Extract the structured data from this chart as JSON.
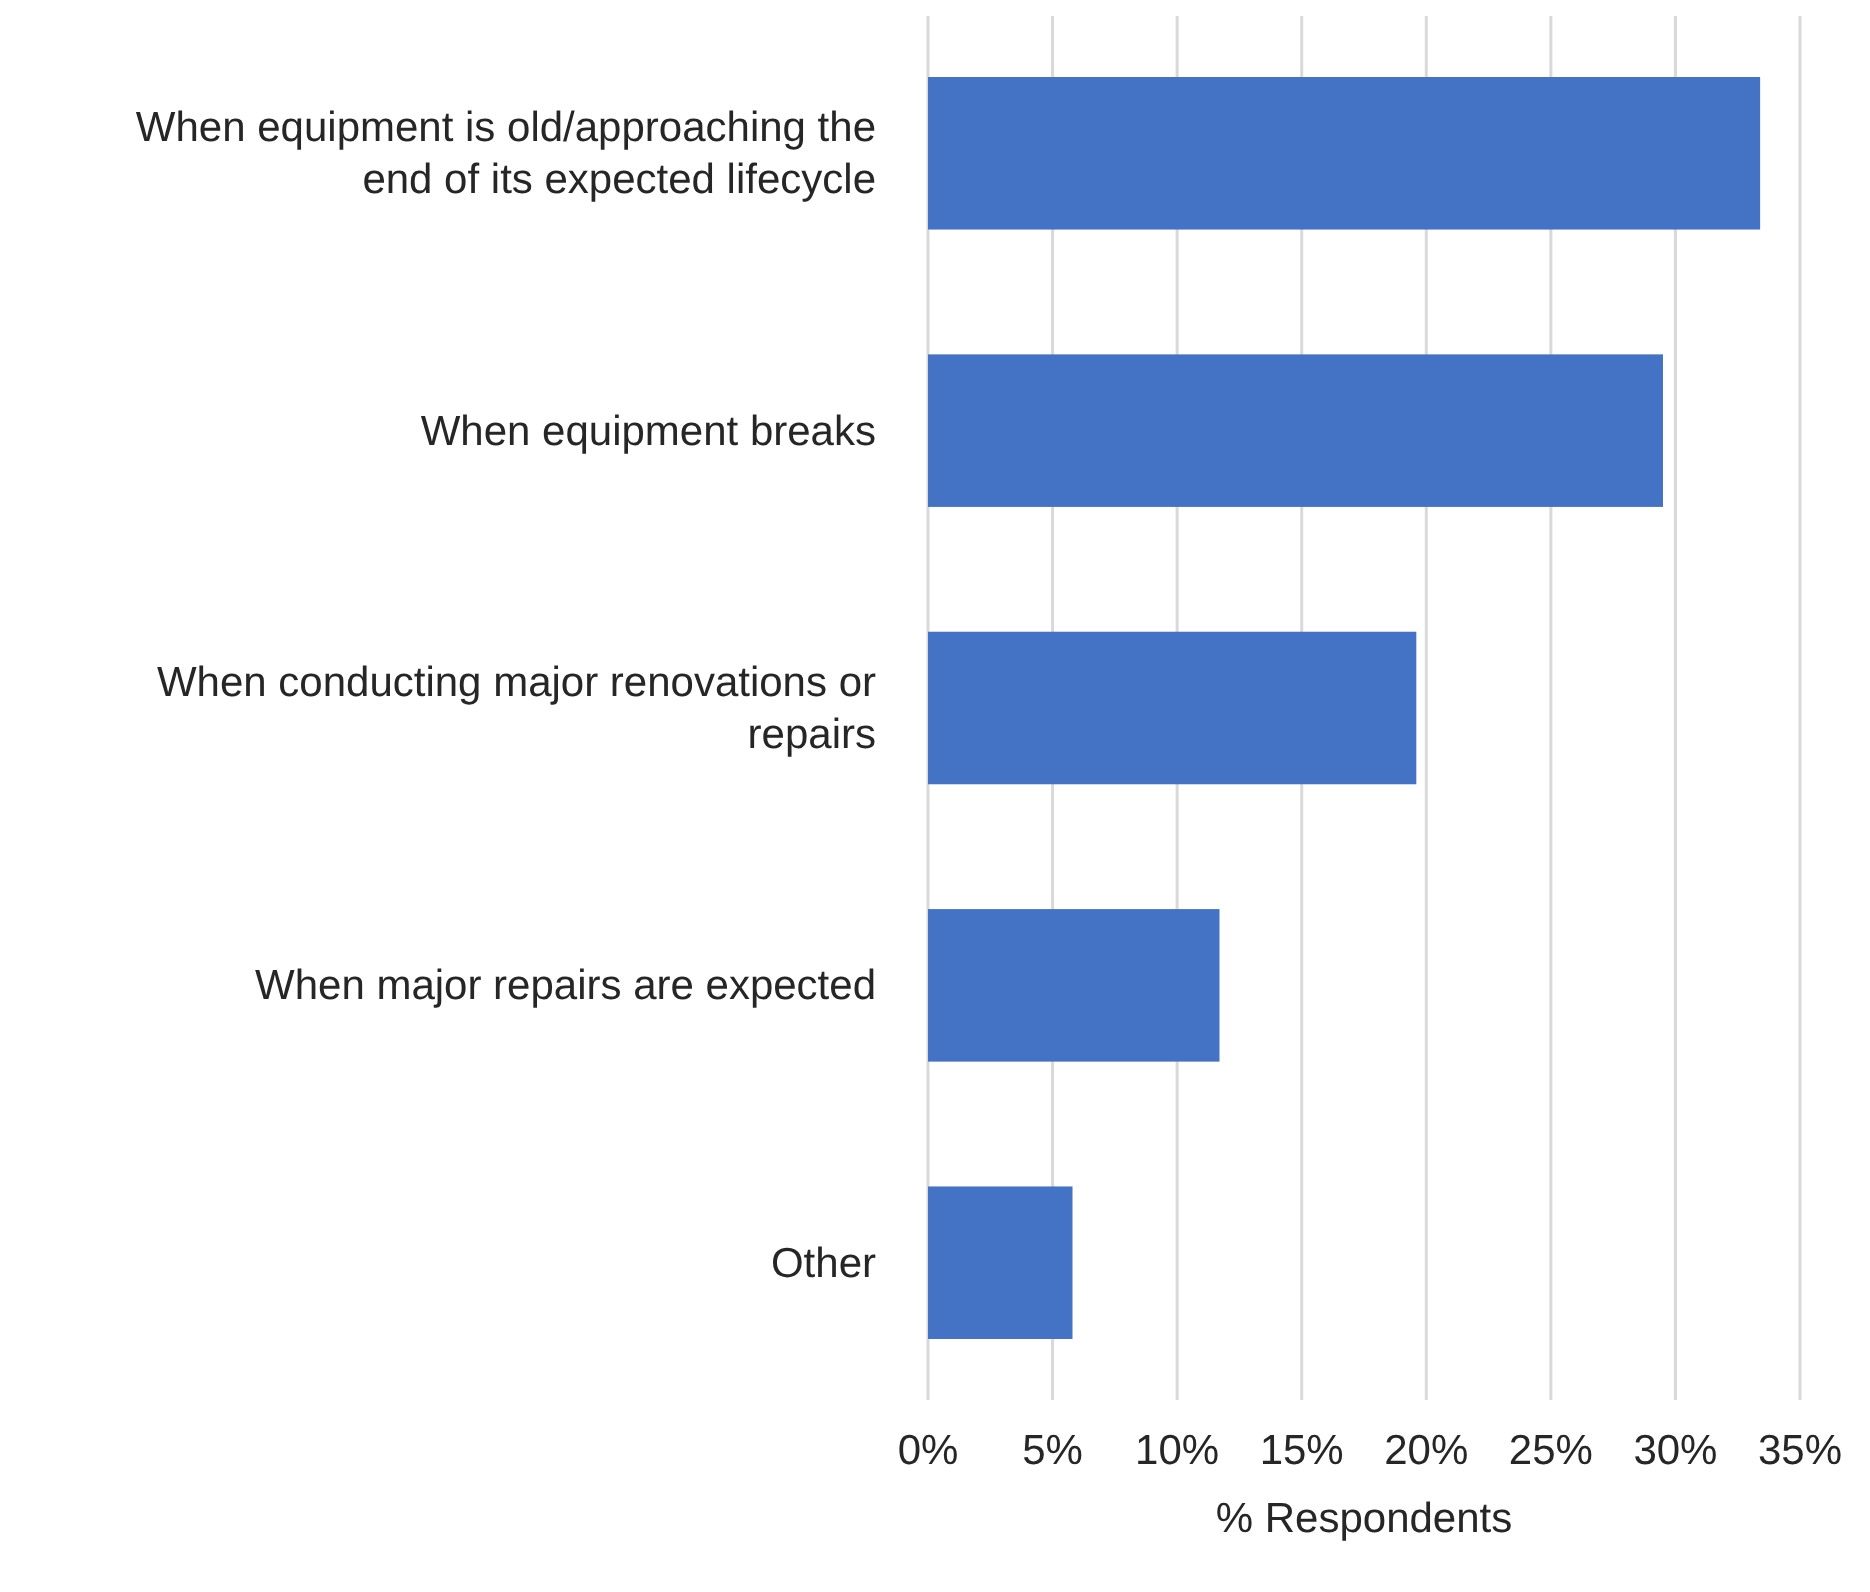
{
  "chart_data": {
    "type": "bar",
    "orientation": "horizontal",
    "xlabel": "% Respondents",
    "categories": [
      "When equipment is old/approaching the end of its expected lifecycle",
      "When equipment breaks",
      "When conducting major renovations or repairs",
      "When major repairs are expected",
      "Other"
    ],
    "values": [
      33.4,
      29.5,
      19.6,
      11.7,
      5.8
    ],
    "color": "#4472c4",
    "xlim": [
      0,
      35
    ],
    "xticks": [
      {
        "value": 0,
        "label": "0%"
      },
      {
        "value": 5,
        "label": "5%"
      },
      {
        "value": 10,
        "label": "10%"
      },
      {
        "value": 15,
        "label": "15%"
      },
      {
        "value": 20,
        "label": "20%"
      },
      {
        "value": 25,
        "label": "25%"
      },
      {
        "value": 30,
        "label": "30%"
      },
      {
        "value": 35,
        "label": "35%"
      }
    ],
    "grid": "x"
  }
}
